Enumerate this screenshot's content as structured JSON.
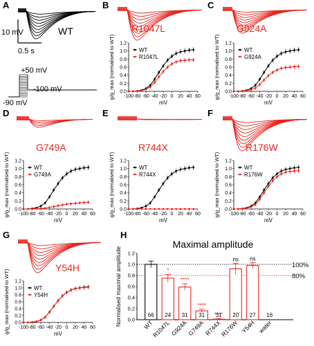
{
  "colors": {
    "wt": "#000000",
    "mut": "#e8251e",
    "ref": "#d62020"
  },
  "panels": [
    {
      "letter": "A",
      "mutant": "WT",
      "scale": {
        "y": "10 mV",
        "x": "0.5 s"
      },
      "protocol": {
        "top": "+50 mV",
        "left": "-90 mV",
        "right": "-100 mV"
      }
    },
    {
      "letter": "B",
      "mutant": "R1047L"
    },
    {
      "letter": "C",
      "mutant": "G924A"
    },
    {
      "letter": "D",
      "mutant": "G749A"
    },
    {
      "letter": "E",
      "mutant": "R744X"
    },
    {
      "letter": "F",
      "mutant": "R176W"
    },
    {
      "letter": "G",
      "mutant": "Y54H"
    },
    {
      "letter": "H"
    }
  ],
  "gv_axis": {
    "ylabel": "g/g_max (normalised to WT)",
    "xlabel": "mV",
    "yticks": [
      "0.0",
      "0.2",
      "0.4",
      "0.6",
      "0.8",
      "1.0",
      "1.2"
    ],
    "xticks": [
      "-100",
      "-80",
      "-60",
      "-40",
      "-20",
      "0",
      "20",
      "40",
      "60"
    ]
  },
  "chart_data": [
    {
      "type": "line",
      "panel": "B",
      "x": [
        -100,
        -90,
        -80,
        -70,
        -60,
        -50,
        -40,
        -30,
        -20,
        -10,
        0,
        10,
        20,
        30,
        40,
        50
      ],
      "series": [
        {
          "name": "WT",
          "values": [
            0,
            0,
            0.01,
            0.03,
            0.07,
            0.15,
            0.3,
            0.47,
            0.63,
            0.77,
            0.87,
            0.94,
            0.98,
            1.0,
            1.02,
            1.03
          ]
        },
        {
          "name": "R1047L",
          "values": [
            0,
            0,
            0.01,
            0.02,
            0.05,
            0.11,
            0.22,
            0.36,
            0.49,
            0.6,
            0.68,
            0.73,
            0.76,
            0.77,
            0.78,
            0.78
          ]
        }
      ],
      "ylim": [
        0,
        1.2
      ],
      "xlim": [
        -100,
        60
      ]
    },
    {
      "type": "line",
      "panel": "C",
      "x": [
        -100,
        -90,
        -80,
        -70,
        -60,
        -50,
        -40,
        -30,
        -20,
        -10,
        0,
        10,
        20,
        30,
        40,
        50
      ],
      "series": [
        {
          "name": "WT",
          "values": [
            0,
            0,
            0.01,
            0.03,
            0.07,
            0.15,
            0.3,
            0.47,
            0.63,
            0.77,
            0.87,
            0.94,
            0.98,
            1.0,
            1.02,
            1.03
          ]
        },
        {
          "name": "G924A",
          "values": [
            0,
            0,
            0.01,
            0.02,
            0.04,
            0.08,
            0.17,
            0.28,
            0.39,
            0.47,
            0.53,
            0.57,
            0.59,
            0.6,
            0.61,
            0.62
          ]
        }
      ],
      "ylim": [
        0,
        1.2
      ],
      "xlim": [
        -100,
        60
      ]
    },
    {
      "type": "line",
      "panel": "D",
      "x": [
        -100,
        -90,
        -80,
        -70,
        -60,
        -50,
        -40,
        -30,
        -20,
        -10,
        0,
        10,
        20,
        30,
        40,
        50
      ],
      "series": [
        {
          "name": "WT",
          "values": [
            0,
            0,
            0.01,
            0.03,
            0.07,
            0.15,
            0.3,
            0.47,
            0.63,
            0.77,
            0.87,
            0.94,
            0.98,
            1.0,
            1.02,
            1.03
          ]
        },
        {
          "name": "G749A",
          "values": [
            0,
            0,
            0,
            0.01,
            0.01,
            0.02,
            0.04,
            0.06,
            0.08,
            0.1,
            0.12,
            0.13,
            0.14,
            0.15,
            0.16,
            0.17
          ]
        }
      ],
      "ylim": [
        0,
        1.2
      ],
      "xlim": [
        -100,
        60
      ]
    },
    {
      "type": "line",
      "panel": "E",
      "x": [
        -100,
        -90,
        -80,
        -70,
        -60,
        -50,
        -40,
        -30,
        -20,
        -10,
        0,
        10,
        20,
        30,
        40,
        50
      ],
      "series": [
        {
          "name": "WT",
          "values": [
            0,
            0,
            0.01,
            0.03,
            0.07,
            0.15,
            0.3,
            0.47,
            0.63,
            0.77,
            0.87,
            0.94,
            0.98,
            1.0,
            1.02,
            1.03
          ]
        },
        {
          "name": "R744X",
          "values": [
            0,
            0,
            0,
            0,
            0,
            0,
            0,
            0,
            0,
            0,
            0,
            0,
            0,
            0,
            0,
            0
          ]
        }
      ],
      "ylim": [
        0,
        1.2
      ],
      "xlim": [
        -100,
        60
      ]
    },
    {
      "type": "line",
      "panel": "F",
      "x": [
        -100,
        -90,
        -80,
        -70,
        -60,
        -50,
        -40,
        -30,
        -20,
        -10,
        0,
        10,
        20,
        30,
        40,
        50
      ],
      "series": [
        {
          "name": "WT",
          "values": [
            0,
            0,
            0.01,
            0.03,
            0.07,
            0.15,
            0.3,
            0.47,
            0.63,
            0.77,
            0.87,
            0.94,
            0.98,
            1.0,
            1.02,
            1.03
          ]
        },
        {
          "name": "R176W",
          "values": [
            0,
            0,
            0.01,
            0.02,
            0.05,
            0.11,
            0.24,
            0.4,
            0.56,
            0.7,
            0.8,
            0.87,
            0.91,
            0.93,
            0.94,
            0.95
          ]
        }
      ],
      "ylim": [
        0,
        1.2
      ],
      "xlim": [
        -100,
        60
      ]
    },
    {
      "type": "line",
      "panel": "G",
      "x": [
        -100,
        -90,
        -80,
        -70,
        -60,
        -50,
        -40,
        -30,
        -20,
        -10,
        0,
        10,
        20,
        30,
        40,
        50
      ],
      "series": [
        {
          "name": "WT",
          "values": [
            0,
            0,
            0.01,
            0.03,
            0.07,
            0.15,
            0.3,
            0.47,
            0.63,
            0.77,
            0.87,
            0.94,
            0.98,
            1.0,
            1.02,
            1.03
          ]
        },
        {
          "name": "Y54H",
          "values": [
            0,
            0,
            0.01,
            0.03,
            0.07,
            0.15,
            0.3,
            0.47,
            0.63,
            0.77,
            0.87,
            0.94,
            0.98,
            1.0,
            1.01,
            1.02
          ]
        }
      ],
      "ylim": [
        0,
        1.2
      ],
      "xlim": [
        -100,
        60
      ]
    },
    {
      "type": "bar",
      "panel": "H",
      "title": "Maximal amplitude",
      "ylabel": "Normalised maximal amplitude",
      "ylim": [
        0,
        1.2
      ],
      "yticks": [
        "0.0",
        "0.2",
        "0.4",
        "0.6",
        "0.8",
        "1.0",
        "1.2"
      ],
      "categories": [
        "WT",
        "R1047L",
        "G924A",
        "G749A",
        "R744X",
        "R176W",
        "Y54H",
        "water"
      ],
      "values": [
        1.0,
        0.75,
        0.59,
        0.16,
        0.01,
        0.92,
        0.98,
        0
      ],
      "errors": [
        0.06,
        0.07,
        0.06,
        0.03,
        0.01,
        0.1,
        0.05,
        0
      ],
      "n": [
        "66",
        "24",
        "31",
        "31",
        "31",
        "20",
        "27",
        "16"
      ],
      "sig": [
        "",
        "*",
        "****",
        "****",
        "****",
        "ns",
        "ns",
        ""
      ],
      "ref_lines": [
        {
          "value": 1.0,
          "label": "100%"
        },
        {
          "value": 0.8,
          "label": "80%"
        }
      ]
    }
  ]
}
